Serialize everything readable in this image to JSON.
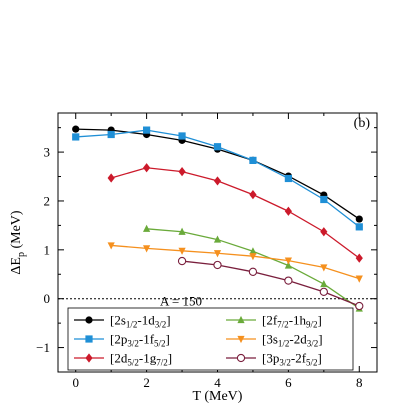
{
  "chart_data": {
    "type": "line",
    "panel_label": "(b)",
    "xlabel": "T (MeV)",
    "ylabel": "ΔE_p (MeV)",
    "xlim": [
      -0.5,
      8.5
    ],
    "ylim": [
      -1.5,
      3.8
    ],
    "xticks": [
      0,
      2,
      4,
      6,
      8
    ],
    "yticks": [
      -1,
      0,
      1,
      2,
      3
    ],
    "zero_line": true,
    "annotation": "A = 150",
    "legend_position": "bottom-left",
    "series": [
      {
        "name": "[2s1/2-1d3/2]",
        "label_main": "[2s",
        "label_sub1": "1/2",
        "label_mid": "-1d",
        "label_sub2": "3/2",
        "label_end": "]",
        "color": "#000000",
        "marker": "circle",
        "x": [
          0,
          1,
          2,
          3,
          4,
          5,
          6,
          7,
          8
        ],
        "y": [
          3.47,
          3.45,
          3.36,
          3.24,
          3.06,
          2.83,
          2.51,
          2.12,
          1.63
        ]
      },
      {
        "name": "[2p3/2-1f5/2]",
        "label_main": "[2p",
        "label_sub1": "3/2",
        "label_mid": "-1f",
        "label_sub2": "5/2",
        "label_end": "]",
        "color": "#1f8fd6",
        "marker": "square",
        "x": [
          0,
          1,
          2,
          3,
          4,
          5,
          6,
          7,
          8
        ],
        "y": [
          3.31,
          3.36,
          3.45,
          3.33,
          3.11,
          2.83,
          2.46,
          2.03,
          1.47
        ]
      },
      {
        "name": "[2d5/2-1g7/2]",
        "label_main": "[2d",
        "label_sub1": "5/2",
        "label_mid": "-1g",
        "label_sub2": "7/2",
        "label_end": "]",
        "color": "#cc1a2b",
        "marker": "diamond",
        "x": [
          1,
          2,
          3,
          4,
          5,
          6,
          7,
          8
        ],
        "y": [
          2.47,
          2.68,
          2.6,
          2.41,
          2.13,
          1.79,
          1.37,
          0.83
        ]
      },
      {
        "name": "[2f7/2-1h9/2]",
        "label_main": "[2f",
        "label_sub1": "7/2",
        "label_mid": "-1h",
        "label_sub2": "9/2",
        "label_end": "]",
        "color": "#6aaa3a",
        "marker": "triangle-up",
        "x": [
          2,
          3,
          4,
          5,
          6,
          7,
          8
        ],
        "y": [
          1.43,
          1.37,
          1.21,
          0.97,
          0.68,
          0.3,
          -0.2
        ]
      },
      {
        "name": "[3s1/2-2d3/2]",
        "label_main": "[3s",
        "label_sub1": "1/2",
        "label_mid": "-2d",
        "label_sub2": "3/2",
        "label_end": "]",
        "color": "#f5901e",
        "marker": "triangle-down",
        "x": [
          1,
          2,
          3,
          4,
          5,
          6,
          7,
          8
        ],
        "y": [
          1.09,
          1.03,
          0.98,
          0.93,
          0.87,
          0.78,
          0.64,
          0.41
        ]
      },
      {
        "name": "[3p3/2-2f5/2]",
        "label_main": "[3p",
        "label_sub1": "3/2",
        "label_mid": "-2f",
        "label_sub2": "5/2",
        "label_end": "]",
        "color": "#7a1f3d",
        "marker": "open-circle",
        "x": [
          3,
          4,
          5,
          6,
          7,
          8
        ],
        "y": [
          0.77,
          0.69,
          0.55,
          0.37,
          0.14,
          -0.15
        ]
      }
    ]
  }
}
